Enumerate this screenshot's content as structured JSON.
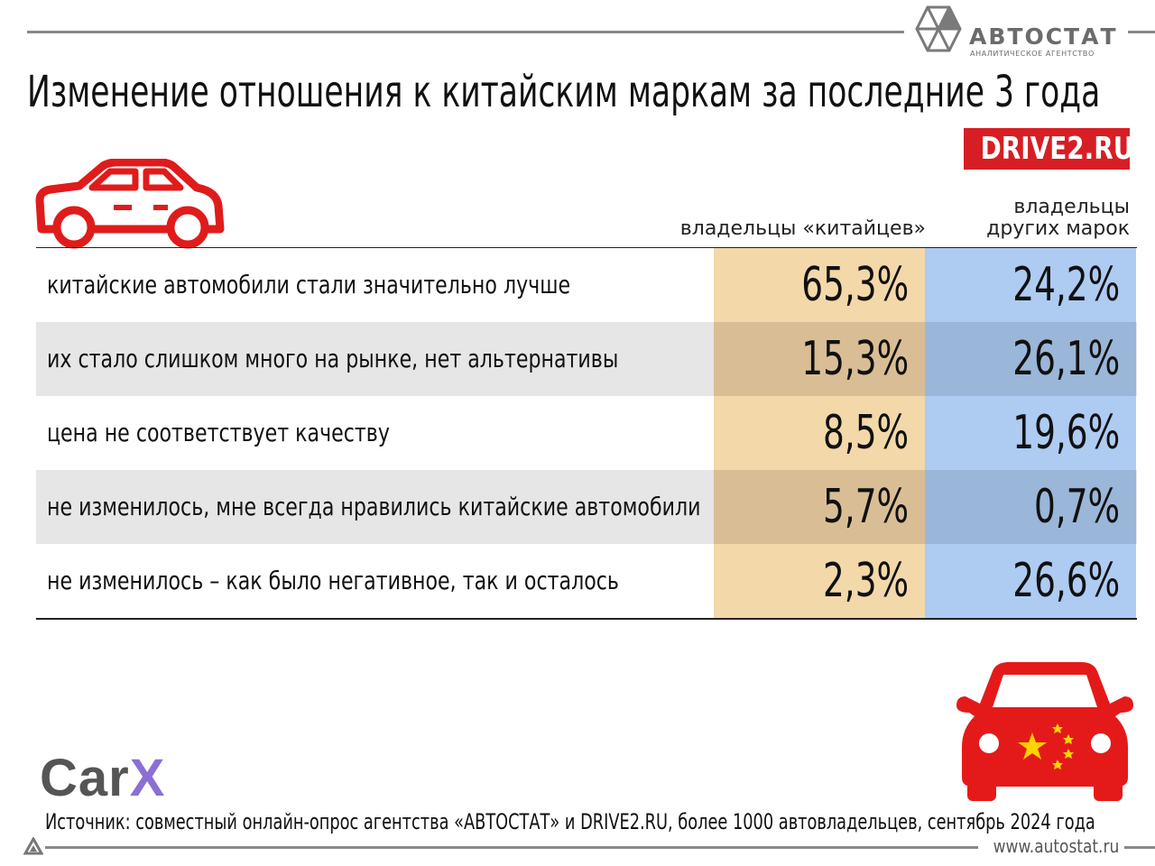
{
  "logo": {
    "name": "АВТОСТАТ",
    "subtitle": "АНАЛИТИЧЕСКОЕ АГЕНТСТВО"
  },
  "title": "Изменение отношения к китайским маркам за последние 3 года",
  "badge": "DRIVE2.RU",
  "icons": {
    "car_outline": "car-outline-icon",
    "car_china": "chinese-car-icon",
    "corner": "triangle-logo-icon"
  },
  "colors": {
    "accent_red": "#d71e24",
    "col_china": "#f3d8a9",
    "col_other": "#aecbf2"
  },
  "table": {
    "col1_header": "владельцы «китайцев»",
    "col2_header_line1": "владельцы",
    "col2_header_line2": "других марок",
    "rows": [
      {
        "label": "китайские автомобили стали значительно лучше",
        "china": "65,3%",
        "other": "24,2%"
      },
      {
        "label": "их стало слишком много на рынке, нет альтернативы",
        "china": "15,3%",
        "other": "26,1%"
      },
      {
        "label": "цена не соответствует качеству",
        "china": "8,5%",
        "other": "19,6%"
      },
      {
        "label": "не изменилось, мне всегда нравились китайские автомобили",
        "china": "5,7%",
        "other": "0,7%"
      },
      {
        "label": "не изменилось – как было негативное, так и осталось",
        "china": "2,3%",
        "other": "26,6%"
      }
    ]
  },
  "carx": {
    "part1": "Car",
    "part2": "X"
  },
  "source": "Источник: совместный онлайн-опрос агентства «АВТОСТАТ» и DRIVE2.RU, более 1000 автовладельцев, сентябрь 2024 года",
  "site": "www.autostat.ru"
}
